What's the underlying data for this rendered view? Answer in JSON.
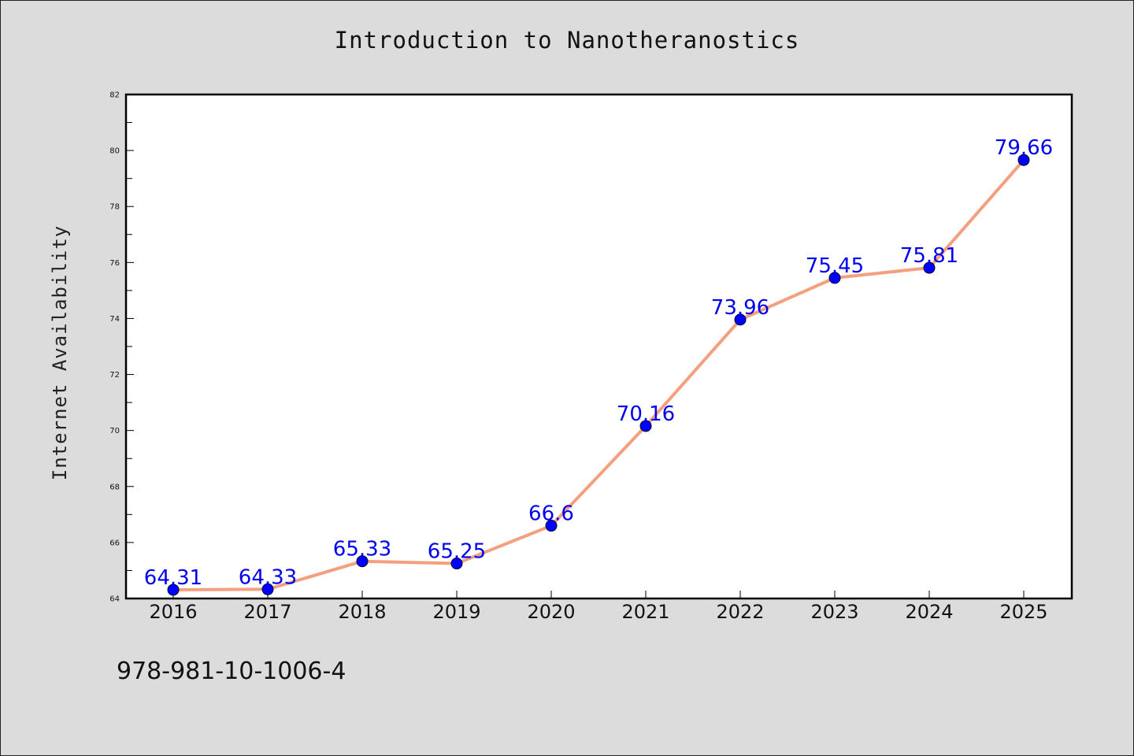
{
  "chart_data": {
    "type": "line",
    "title": "Introduction to Nanotheranostics",
    "xlabel": "",
    "ylabel": "Internet Availability",
    "x": [
      "2016",
      "2017",
      "2018",
      "2019",
      "2020",
      "2021",
      "2022",
      "2023",
      "2024",
      "2025"
    ],
    "series": [
      {
        "values": [
          64.31,
          64.33,
          65.33,
          65.25,
          66.6,
          70.16,
          73.96,
          75.45,
          75.81,
          79.66
        ],
        "data_labels": [
          "64.31",
          "64.33",
          "65.33",
          "65.25",
          "66.6",
          "70.16",
          "73.96",
          "75.45",
          "75.81",
          "79.66"
        ],
        "line_color": "#f4a07f",
        "marker_color": "#0000ff"
      }
    ],
    "ylim": [
      64,
      82
    ],
    "yticks": [
      64,
      66,
      68,
      70,
      72,
      74,
      76,
      78,
      80,
      82
    ],
    "grid": false,
    "legend": "none",
    "label_color": "#0000ee"
  },
  "footer": {
    "isbn": "978-981-10-1006-4"
  }
}
